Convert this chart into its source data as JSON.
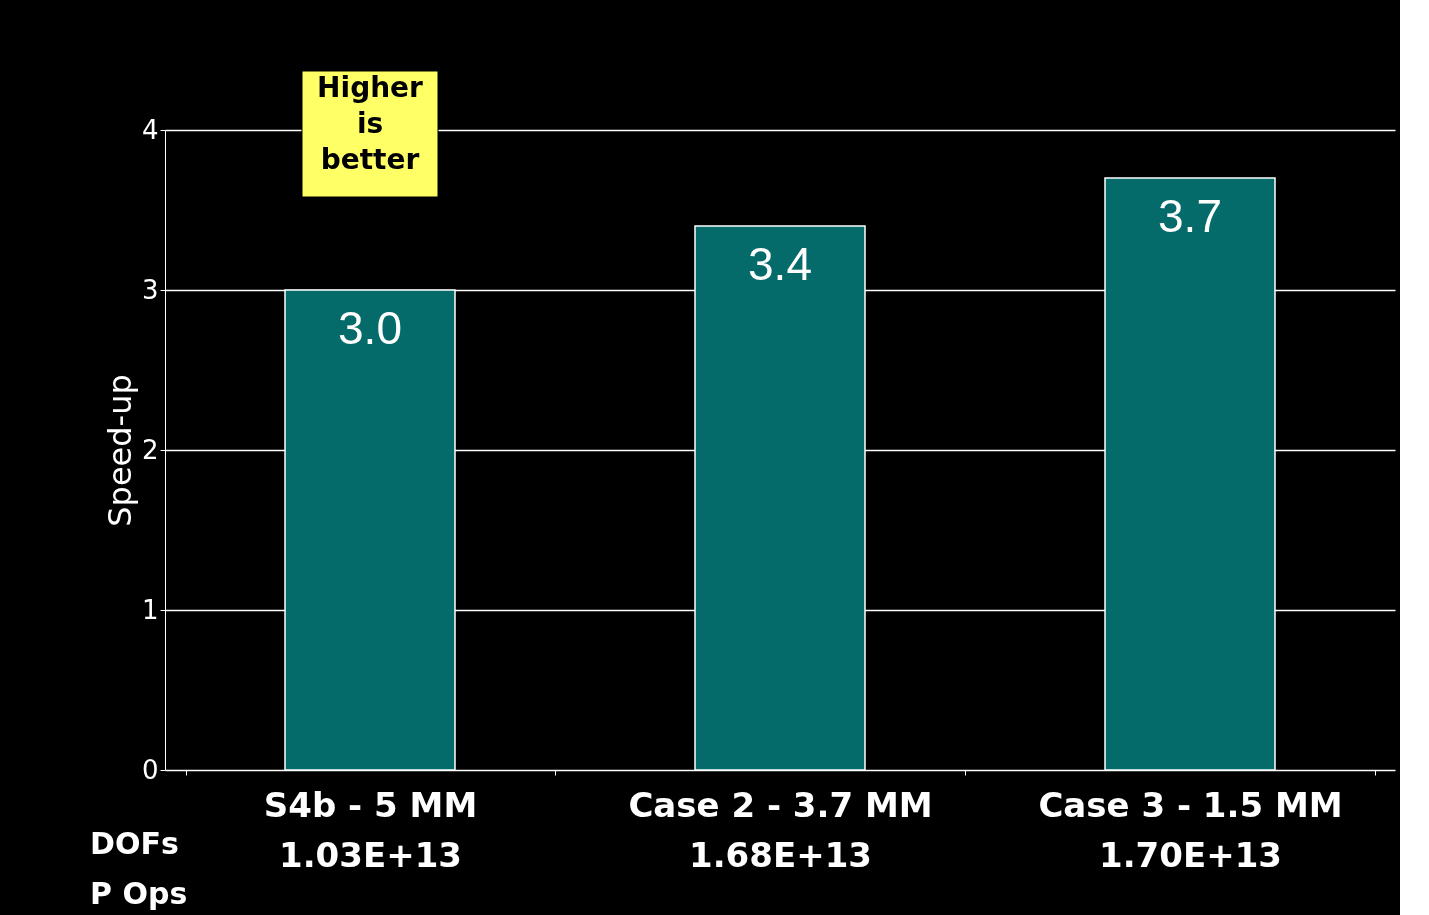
{
  "chart_data": {
    "type": "bar",
    "ylabel": "Speed-up",
    "categories": [
      "S4b - 5 MM\n1.03E+13",
      "Case 2 - 3.7 MM\n1.68E+13",
      "Case 3 - 1.5 MM\n1.70E+13"
    ],
    "values": [
      3.0,
      3.4,
      3.7
    ],
    "value_labels": [
      "3.0",
      "3.4",
      "3.7"
    ],
    "color": "#056a6a",
    "ylim": [
      0,
      4
    ],
    "yticks": [
      0,
      1,
      2,
      3,
      4
    ],
    "grid": "y",
    "annotations": [
      "Higher is better",
      "DOFs",
      "P Ops"
    ]
  }
}
